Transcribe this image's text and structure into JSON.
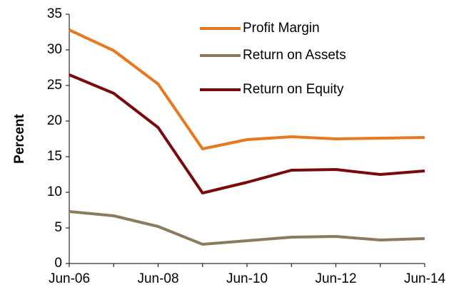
{
  "chart_data": {
    "type": "line",
    "y_label": "Percent",
    "categories": [
      "Jun-06",
      null,
      "Jun-08",
      null,
      "Jun-10",
      null,
      "Jun-12",
      null,
      "Jun-14"
    ],
    "series": [
      {
        "name": "Profit Margin",
        "color": "#e8781e",
        "values": [
          32.8,
          29.9,
          25.2,
          16.1,
          17.4,
          17.8,
          17.5,
          17.6,
          17.7
        ]
      },
      {
        "name": "Return on Assets",
        "color": "#8c7a5e",
        "values": [
          7.3,
          6.7,
          5.2,
          2.7,
          3.2,
          3.7,
          3.8,
          3.3,
          3.5
        ]
      },
      {
        "name": "Return on Equity",
        "color": "#7a0a0a",
        "values": [
          26.5,
          23.9,
          19.1,
          9.9,
          11.4,
          13.1,
          13.2,
          12.5,
          13.0
        ]
      }
    ],
    "ylim": [
      0,
      35
    ],
    "yticks": [
      0,
      5,
      10,
      15,
      20,
      25,
      30,
      35
    ],
    "grid": false,
    "legend": "upper right"
  }
}
